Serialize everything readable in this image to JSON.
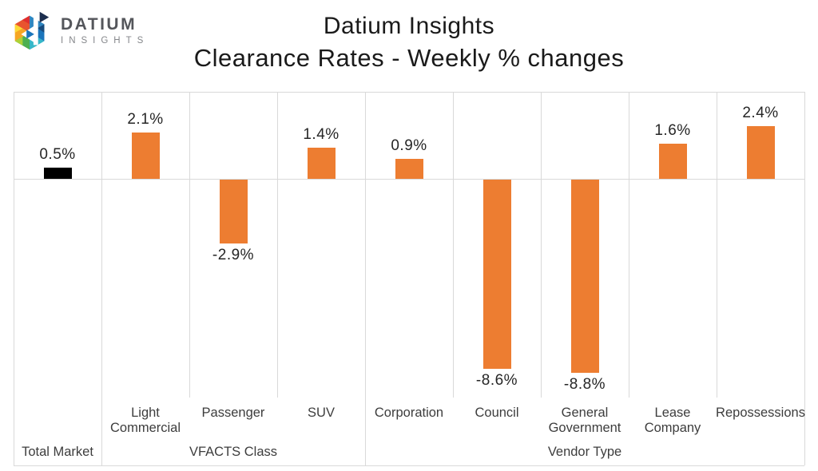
{
  "logo": {
    "brand": "DATIUM",
    "sub": "INSIGHTS"
  },
  "title": {
    "line1": "Datium Insights",
    "line2": "Clearance Rates - Weekly % changes"
  },
  "colors": {
    "bar_orange": "#ED7D31",
    "bar_black": "#000000",
    "gridline": "#D9D9D9",
    "label_text": "#262626"
  },
  "chart_data": {
    "type": "bar",
    "title": "Datium Insights — Clearance Rates - Weekly % changes",
    "categories": [
      "Total Market",
      "Light Commercial",
      "Passenger",
      "SUV",
      "Corporation",
      "Council",
      "General Government",
      "Lease Company",
      "Repossessions"
    ],
    "values": [
      0.5,
      2.1,
      -2.9,
      1.4,
      0.9,
      -8.6,
      -8.8,
      1.6,
      2.4
    ],
    "labels": [
      "0.5%",
      "2.1%",
      "-2.9%",
      "1.4%",
      "0.9%",
      "-8.6%",
      "-8.8%",
      "1.6%",
      "2.4%"
    ],
    "tick_labels": [
      "",
      "Light Commercial",
      "Passenger",
      "SUV",
      "Corporation",
      "Council",
      "General Government",
      "Lease Company",
      "Repossessions"
    ],
    "bar_colors": [
      "#000000",
      "#ED7D31",
      "#ED7D31",
      "#ED7D31",
      "#ED7D31",
      "#ED7D31",
      "#ED7D31",
      "#ED7D31",
      "#ED7D31"
    ],
    "groups": [
      {
        "label": "Total Market",
        "span": [
          0,
          0
        ]
      },
      {
        "label": "VFACTS Class",
        "span": [
          1,
          3
        ]
      },
      {
        "label": "Vendor Type",
        "span": [
          4,
          8
        ]
      }
    ],
    "ylim": [
      -10,
      4
    ],
    "xlabel": "",
    "ylabel": "Weekly % change",
    "legend": "none",
    "grid": "vertical category separators, zero baseline, top border"
  }
}
